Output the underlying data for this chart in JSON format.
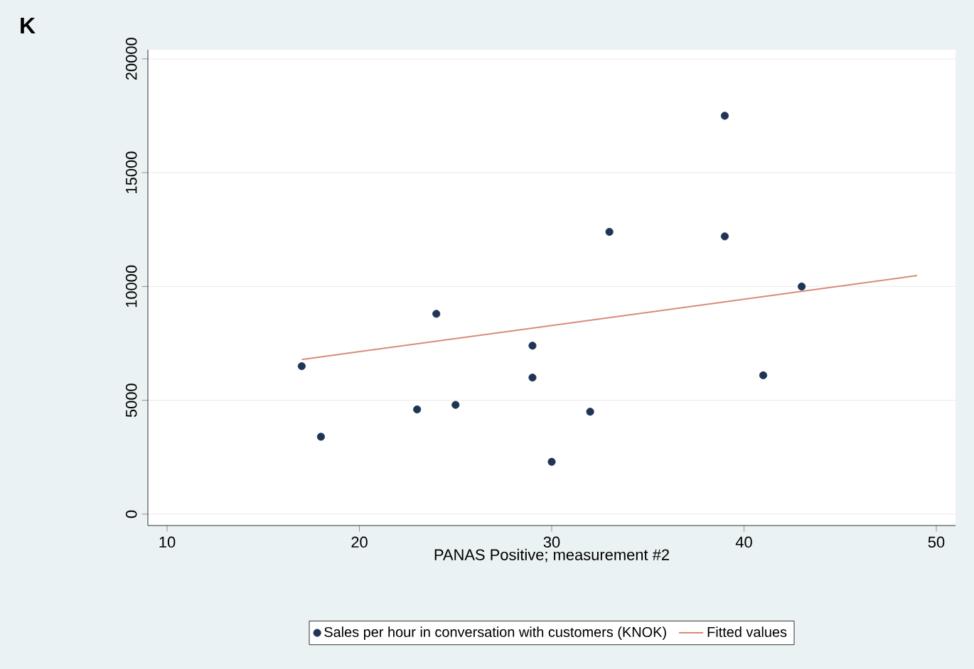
{
  "chart_data": {
    "type": "scatter",
    "xlabel": "PANAS Positive; measurement #2",
    "annotations": [
      "K"
    ],
    "xlim": [
      9,
      51
    ],
    "ylim": [
      -500,
      20400
    ],
    "xticks": [
      10,
      20,
      30,
      40,
      50
    ],
    "yticks": [
      0,
      5000,
      10000,
      15000,
      20000
    ],
    "grid": "y",
    "legend": "bottom",
    "series": [
      {
        "name": "Sales per hour in conversation with customers (KNOK)",
        "color": "#1f3556",
        "marker": "circle",
        "x": [
          17,
          18,
          23,
          24,
          25,
          29,
          29,
          30,
          32,
          33,
          39,
          39,
          41,
          43
        ],
        "values": [
          6500,
          3400,
          4600,
          8800,
          4800,
          7400,
          6000,
          2300,
          4500,
          12400,
          17500,
          12200,
          6100,
          10000
        ]
      },
      {
        "name": "Fitted values",
        "type": "line",
        "color": "#d98a7a",
        "marker": "none",
        "x": [
          17,
          49
        ],
        "values": [
          6790,
          10480
        ]
      }
    ]
  }
}
